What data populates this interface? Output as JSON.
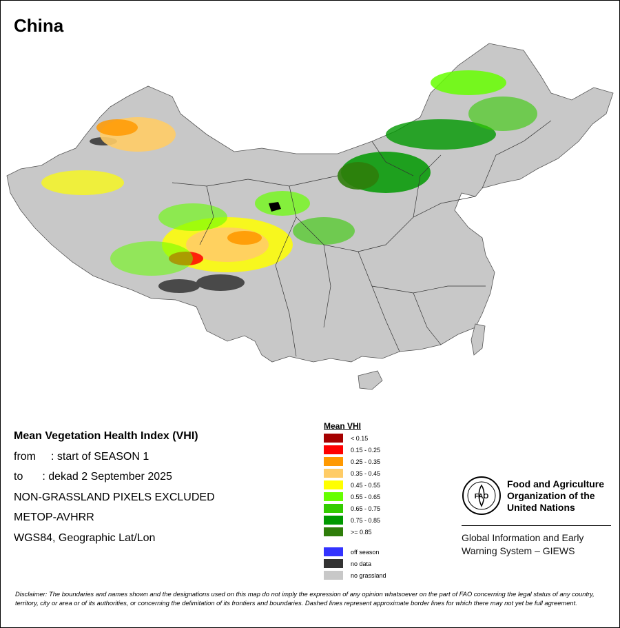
{
  "map": {
    "title": "China",
    "info": {
      "heading": "Mean Vegetation Health Index (VHI)",
      "from_label": "from",
      "from_value": ": start of SEASON 1",
      "to_label": "to",
      "to_value": ": dekad 2 September 2025",
      "line_excluded": "NON-GRASSLAND PIXELS EXCLUDED",
      "line_sensor": "METOP-AVHRR",
      "line_projection": "WGS84, Geographic Lat/Lon"
    },
    "legend": {
      "title": "Mean VHI",
      "items": [
        {
          "label": "< 0.15",
          "color": "#a50000"
        },
        {
          "label": "0.15 - 0.25",
          "color": "#ff0000"
        },
        {
          "label": "0.25 - 0.35",
          "color": "#ff9900"
        },
        {
          "label": "0.35 - 0.45",
          "color": "#ffcc66"
        },
        {
          "label": "0.45 - 0.55",
          "color": "#ffff00"
        },
        {
          "label": "0.55 - 0.65",
          "color": "#66ff00"
        },
        {
          "label": "0.65 - 0.75",
          "color": "#33cc00"
        },
        {
          "label": "0.75 - 0.85",
          "color": "#009900"
        },
        {
          "label": ">= 0.85",
          "color": "#2e7d0a"
        }
      ],
      "extra": [
        {
          "label": "off season",
          "color": "#3333ff"
        },
        {
          "label": "no data",
          "color": "#333333"
        },
        {
          "label": "no grassland",
          "color": "#c8c8c8"
        }
      ]
    },
    "organization": {
      "logo_text": "FAO",
      "name_line1": "Food and Agriculture",
      "name_line2": "Organization of the",
      "name_line3": "United Nations",
      "giews_line1": "Global Information and Early",
      "giews_line2": "Warning System – GIEWS"
    },
    "disclaimer": "Disclaimer: The boundaries and names shown and the designations used on this map do not imply the expression of any opinion whatsoever on the part of FAO concerning the legal status of any country, territory, city or area or of its authorities, or concerning the delimitation of its frontiers and boundaries. Dashed lines represent approximate border lines for which there may not yet be full agreement."
  }
}
